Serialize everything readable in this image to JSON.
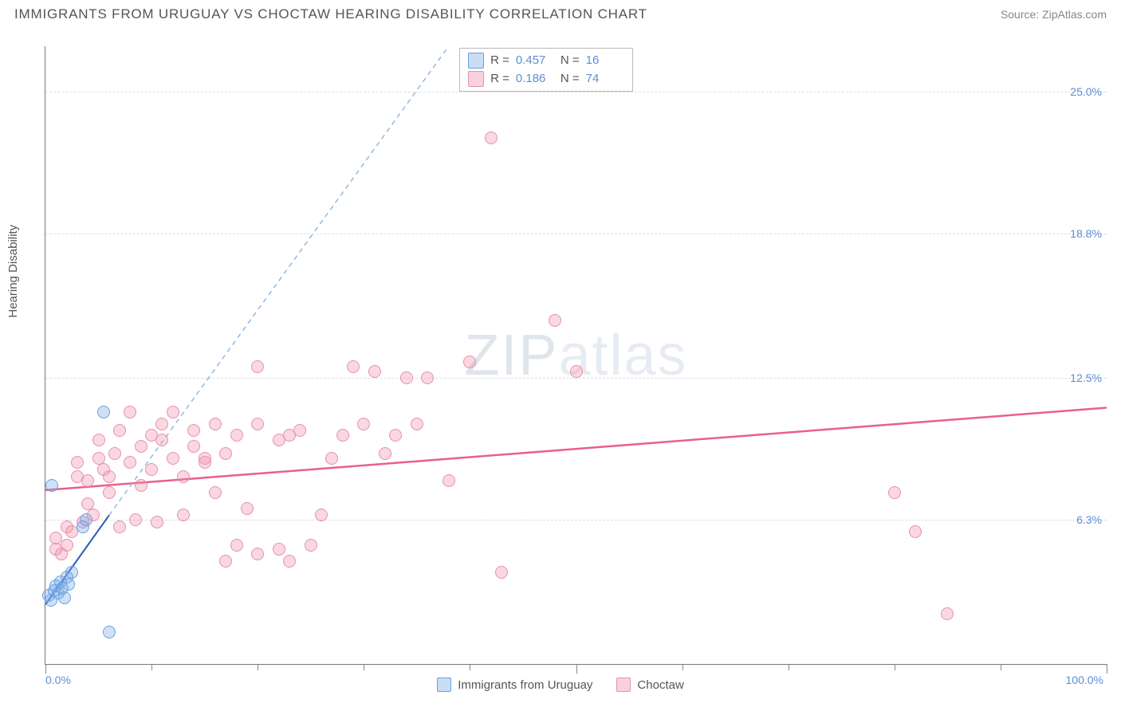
{
  "header": {
    "title": "IMMIGRANTS FROM URUGUAY VS CHOCTAW HEARING DISABILITY CORRELATION CHART",
    "source_prefix": "Source: ",
    "source_name": "ZipAtlas.com"
  },
  "ylabel": "Hearing Disability",
  "watermark": {
    "zip": "ZIP",
    "atlas": "atlas"
  },
  "chart": {
    "type": "scatter",
    "xlim": [
      0,
      100
    ],
    "ylim": [
      0,
      27
    ],
    "background_color": "#ffffff",
    "grid_color": "#dddddd",
    "axis_color": "#777777",
    "tick_label_color": "#5b8fd6",
    "yticks": [
      {
        "v": 6.3,
        "label": "6.3%"
      },
      {
        "v": 12.5,
        "label": "12.5%"
      },
      {
        "v": 18.8,
        "label": "18.8%"
      },
      {
        "v": 25.0,
        "label": "25.0%"
      }
    ],
    "xticks_minor": [
      10,
      20,
      30,
      40,
      60,
      70,
      80,
      90
    ],
    "xticks_major": [
      0,
      50,
      100
    ],
    "xlabels": [
      {
        "v": 0,
        "label": "0.0%",
        "align": "left"
      },
      {
        "v": 100,
        "label": "100.0%",
        "align": "right"
      }
    ],
    "series": {
      "uruguay": {
        "label": "Immigrants from Uruguay",
        "fill": "rgba(120,170,230,0.35)",
        "stroke": "#6aa0e0",
        "swatch_fill": "rgba(120,170,230,0.4)",
        "swatch_border": "#6aa0e0",
        "R": "0.457",
        "N": "16",
        "regression": {
          "x1": 0,
          "y1": 2.6,
          "x2": 6,
          "y2": 6.5,
          "color": "#2a5db8",
          "width": 2,
          "dash": false
        },
        "regression_ext": {
          "x1": 6,
          "y1": 6.5,
          "x2": 38,
          "y2": 27,
          "color": "#8fb8e6",
          "width": 1.5,
          "dash": true
        },
        "points": [
          [
            0.3,
            3.0
          ],
          [
            0.5,
            2.8
          ],
          [
            0.8,
            3.2
          ],
          [
            1.0,
            3.4
          ],
          [
            1.2,
            3.1
          ],
          [
            1.4,
            3.6
          ],
          [
            1.6,
            3.3
          ],
          [
            1.8,
            2.9
          ],
          [
            2.0,
            3.8
          ],
          [
            2.2,
            3.5
          ],
          [
            2.5,
            4.0
          ],
          [
            0.6,
            7.8
          ],
          [
            3.5,
            6.0
          ],
          [
            3.8,
            6.3
          ],
          [
            5.5,
            11.0
          ],
          [
            6.0,
            1.4
          ]
        ]
      },
      "choctaw": {
        "label": "Choctaw",
        "fill": "rgba(240,140,170,0.35)",
        "stroke": "#e691ac",
        "swatch_fill": "rgba(240,140,170,0.4)",
        "swatch_border": "#e691ac",
        "R": "0.186",
        "N": "74",
        "regression": {
          "x1": 0,
          "y1": 7.6,
          "x2": 100,
          "y2": 11.2,
          "color": "#e8608a",
          "width": 2.5,
          "dash": false
        },
        "points": [
          [
            1,
            5.0
          ],
          [
            1,
            5.5
          ],
          [
            1.5,
            4.8
          ],
          [
            2,
            5.2
          ],
          [
            2,
            6.0
          ],
          [
            2.5,
            5.8
          ],
          [
            3,
            8.2
          ],
          [
            3,
            8.8
          ],
          [
            3.5,
            6.2
          ],
          [
            4,
            7.0
          ],
          [
            4,
            8.0
          ],
          [
            4.5,
            6.5
          ],
          [
            5,
            9.0
          ],
          [
            5,
            9.8
          ],
          [
            5.5,
            8.5
          ],
          [
            6,
            7.5
          ],
          [
            6,
            8.2
          ],
          [
            6.5,
            9.2
          ],
          [
            7,
            10.2
          ],
          [
            7,
            6.0
          ],
          [
            8,
            11.0
          ],
          [
            8,
            8.8
          ],
          [
            8.5,
            6.3
          ],
          [
            9,
            9.5
          ],
          [
            9,
            7.8
          ],
          [
            10,
            10.0
          ],
          [
            10,
            8.5
          ],
          [
            10.5,
            6.2
          ],
          [
            11,
            9.8
          ],
          [
            11,
            10.5
          ],
          [
            12,
            9.0
          ],
          [
            12,
            11.0
          ],
          [
            13,
            8.2
          ],
          [
            13,
            6.5
          ],
          [
            14,
            9.5
          ],
          [
            14,
            10.2
          ],
          [
            15,
            8.8
          ],
          [
            15,
            9.0
          ],
          [
            16,
            10.5
          ],
          [
            16,
            7.5
          ],
          [
            17,
            9.2
          ],
          [
            18,
            10.0
          ],
          [
            18,
            5.2
          ],
          [
            19,
            6.8
          ],
          [
            20,
            4.8
          ],
          [
            20,
            10.5
          ],
          [
            22,
            5.0
          ],
          [
            22,
            9.8
          ],
          [
            23,
            4.5
          ],
          [
            24,
            10.2
          ],
          [
            25,
            5.2
          ],
          [
            26,
            6.5
          ],
          [
            27,
            9.0
          ],
          [
            28,
            10.0
          ],
          [
            29,
            13.0
          ],
          [
            30,
            10.5
          ],
          [
            31,
            12.8
          ],
          [
            32,
            9.2
          ],
          [
            33,
            10.0
          ],
          [
            35,
            10.5
          ],
          [
            36,
            12.5
          ],
          [
            38,
            8.0
          ],
          [
            40,
            13.2
          ],
          [
            42,
            23.0
          ],
          [
            43,
            4.0
          ],
          [
            48,
            15.0
          ],
          [
            50,
            12.8
          ],
          [
            80,
            7.5
          ],
          [
            82,
            5.8
          ],
          [
            85,
            2.2
          ],
          [
            17,
            4.5
          ],
          [
            20,
            13.0
          ],
          [
            23,
            10.0
          ],
          [
            34,
            12.5
          ]
        ]
      }
    },
    "stat_box": {
      "R_label": "R =",
      "N_label": "N ="
    }
  }
}
